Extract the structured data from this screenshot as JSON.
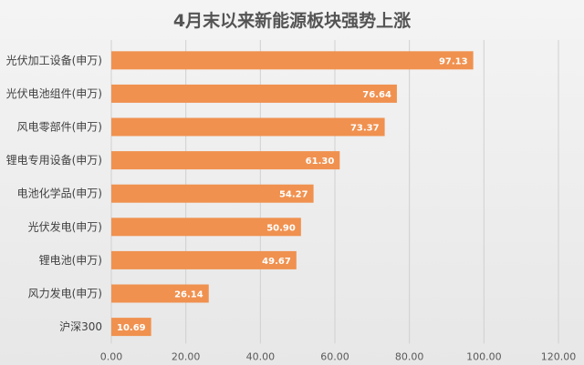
{
  "chart_data": {
    "type": "bar",
    "orientation": "horizontal",
    "title": "4月末以来新能源板块强势上涨",
    "categories": [
      "光伏加工设备(申万)",
      "光伏电池组件(申万)",
      "风电零部件(申万)",
      "锂电专用设备(申万)",
      "电池化学品(申万)",
      "光伏发电(申万)",
      "锂电池(申万)",
      "风力发电(申万)",
      "沪深300"
    ],
    "values": [
      97.13,
      76.64,
      73.37,
      61.3,
      54.27,
      50.9,
      49.67,
      26.14,
      10.69
    ],
    "value_labels": [
      "97.13",
      "76.64",
      "73.37",
      "61.30",
      "54.27",
      "50.90",
      "49.67",
      "26.14",
      "10.69"
    ],
    "xlim": [
      0,
      120
    ],
    "xticks": [
      "0.00",
      "20.00",
      "40.00",
      "60.00",
      "80.00",
      "100.00",
      "120.00"
    ],
    "grid": true,
    "legend": false,
    "bar_color": "#f0914f",
    "grid_color": "#d0d0d0"
  }
}
